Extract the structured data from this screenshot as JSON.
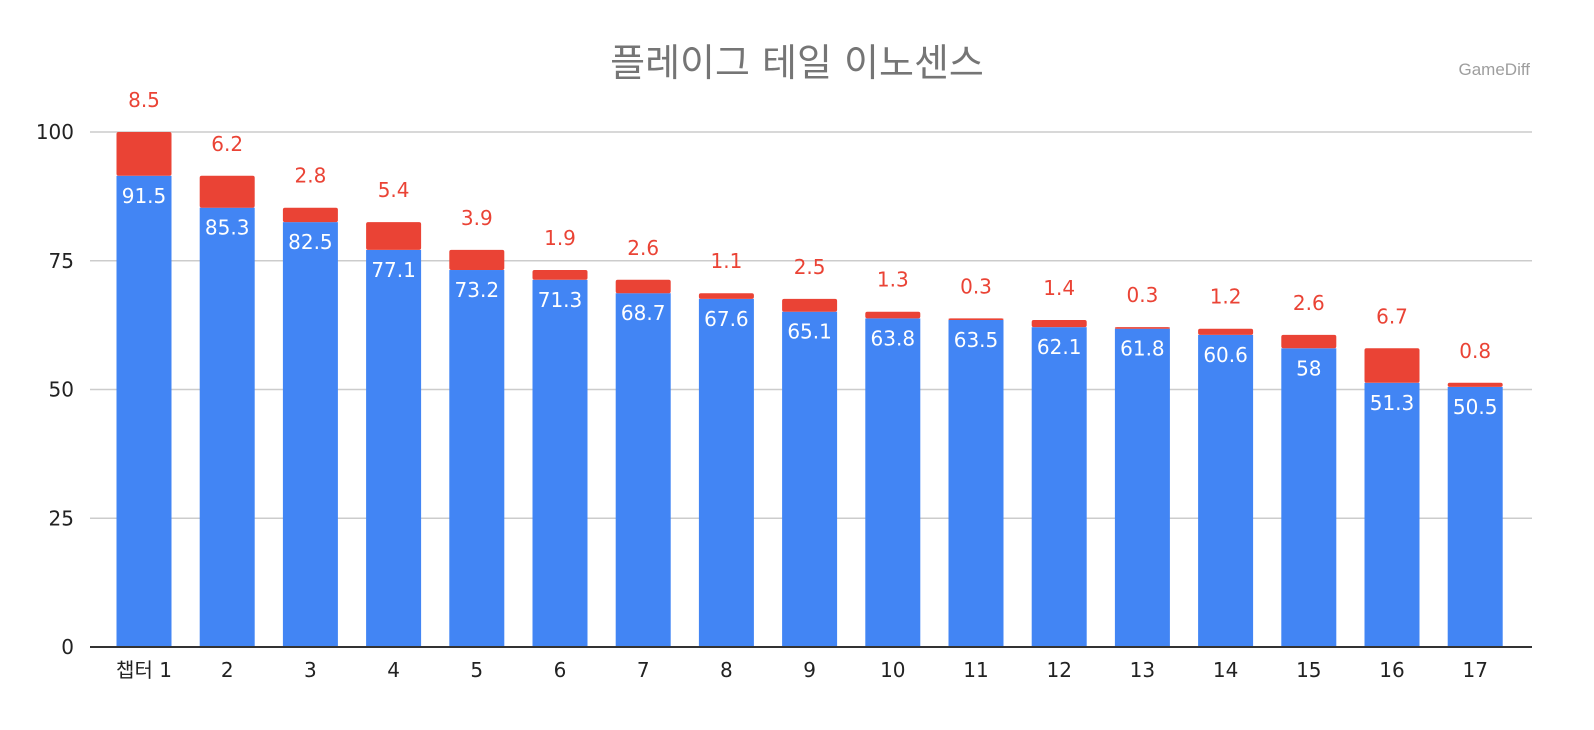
{
  "colors": {
    "base": "#4285f4",
    "increment": "#ea4335",
    "base_label": "#ffffff",
    "increment_label": "#ea4335",
    "grid": "#cccccc",
    "axis": "#333333",
    "tick_label": "#222222"
  },
  "chart_data": {
    "type": "bar",
    "stacked": true,
    "title": "플레이그 테일 이노센스",
    "watermark": "GameDiff",
    "xlabel": "",
    "ylabel": "",
    "ylim": [
      0,
      100
    ],
    "yticks": [
      0,
      25,
      50,
      75,
      100
    ],
    "grid": true,
    "legend": "none",
    "categories": [
      "챕터 1",
      "2",
      "3",
      "4",
      "5",
      "6",
      "7",
      "8",
      "9",
      "10",
      "11",
      "12",
      "13",
      "14",
      "15",
      "16",
      "17"
    ],
    "series": [
      {
        "name": "base",
        "values": [
          91.5,
          85.3,
          82.5,
          77.1,
          73.2,
          71.3,
          68.7,
          67.6,
          65.1,
          63.8,
          63.5,
          62.1,
          61.8,
          60.6,
          58,
          51.3,
          50.5
        ],
        "labels": [
          "91.5",
          "85.3",
          "82.5",
          "77.1",
          "73.2",
          "71.3",
          "68.7",
          "67.6",
          "65.1",
          "63.8",
          "63.5",
          "62.1",
          "61.8",
          "60.6",
          "58",
          "51.3",
          "50.5"
        ]
      },
      {
        "name": "increment",
        "values": [
          8.5,
          6.2,
          2.8,
          5.4,
          3.9,
          1.9,
          2.6,
          1.1,
          2.5,
          1.3,
          0.3,
          1.4,
          0.3,
          1.2,
          2.6,
          6.7,
          0.8
        ],
        "labels": [
          "8.5",
          "6.2",
          "2.8",
          "5.4",
          "3.9",
          "1.9",
          "2.6",
          "1.1",
          "2.5",
          "1.3",
          "0.3",
          "1.4",
          "0.3",
          "1.2",
          "2.6",
          "6.7",
          "0.8"
        ]
      }
    ]
  }
}
